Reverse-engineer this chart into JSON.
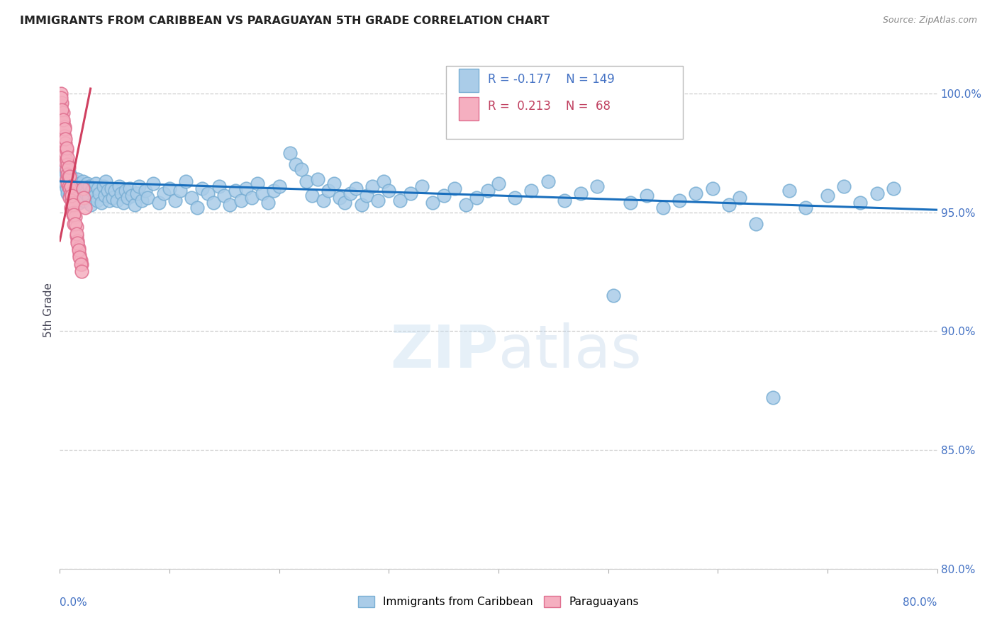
{
  "title": "IMMIGRANTS FROM CARIBBEAN VS PARAGUAYAN 5TH GRADE CORRELATION CHART",
  "source": "Source: ZipAtlas.com",
  "ylabel": "5th Grade",
  "blue_R": -0.177,
  "blue_N": 149,
  "pink_R": 0.213,
  "pink_N": 68,
  "blue_color": "#aacce8",
  "blue_edge": "#7aafd4",
  "pink_color": "#f5afc0",
  "pink_edge": "#e07090",
  "trend_blue": "#1a6fbd",
  "trend_pink": "#d04060",
  "xlim": [
    0.0,
    0.8
  ],
  "ylim": [
    80.0,
    101.8
  ],
  "yticks": [
    80.0,
    85.0,
    90.0,
    95.0,
    100.0
  ],
  "xticks": [
    0.0,
    0.1,
    0.2,
    0.3,
    0.4,
    0.5,
    0.6,
    0.7,
    0.8
  ],
  "blue_trend_x": [
    0.0,
    0.8
  ],
  "blue_trend_y": [
    96.3,
    95.1
  ],
  "pink_trend_x": [
    0.0,
    0.028
  ],
  "pink_trend_y": [
    93.8,
    100.2
  ],
  "blue_scatter": [
    [
      0.001,
      97.8
    ],
    [
      0.002,
      98.1
    ],
    [
      0.002,
      97.2
    ],
    [
      0.003,
      97.5
    ],
    [
      0.003,
      96.8
    ],
    [
      0.004,
      97.0
    ],
    [
      0.004,
      96.5
    ],
    [
      0.005,
      96.9
    ],
    [
      0.005,
      96.2
    ],
    [
      0.006,
      96.6
    ],
    [
      0.006,
      97.1
    ],
    [
      0.006,
      96.0
    ],
    [
      0.007,
      96.4
    ],
    [
      0.007,
      95.8
    ],
    [
      0.008,
      96.7
    ],
    [
      0.008,
      96.1
    ],
    [
      0.009,
      96.3
    ],
    [
      0.009,
      95.7
    ],
    [
      0.01,
      96.5
    ],
    [
      0.01,
      95.9
    ],
    [
      0.011,
      96.2
    ],
    [
      0.012,
      96.0
    ],
    [
      0.012,
      95.5
    ],
    [
      0.013,
      96.3
    ],
    [
      0.014,
      95.8
    ],
    [
      0.015,
      96.1
    ],
    [
      0.015,
      95.6
    ],
    [
      0.016,
      96.4
    ],
    [
      0.017,
      95.9
    ],
    [
      0.018,
      96.2
    ],
    [
      0.018,
      95.4
    ],
    [
      0.019,
      96.0
    ],
    [
      0.02,
      95.7
    ],
    [
      0.021,
      96.3
    ],
    [
      0.022,
      95.5
    ],
    [
      0.023,
      96.0
    ],
    [
      0.024,
      95.8
    ],
    [
      0.025,
      96.2
    ],
    [
      0.026,
      95.6
    ],
    [
      0.027,
      96.1
    ],
    [
      0.028,
      95.3
    ],
    [
      0.029,
      95.9
    ],
    [
      0.03,
      96.0
    ],
    [
      0.032,
      95.7
    ],
    [
      0.033,
      96.2
    ],
    [
      0.034,
      95.5
    ],
    [
      0.035,
      96.0
    ],
    [
      0.036,
      95.8
    ],
    [
      0.038,
      95.4
    ],
    [
      0.04,
      96.1
    ],
    [
      0.041,
      95.7
    ],
    [
      0.042,
      96.3
    ],
    [
      0.044,
      95.9
    ],
    [
      0.045,
      95.5
    ],
    [
      0.047,
      96.0
    ],
    [
      0.048,
      95.6
    ],
    [
      0.05,
      95.9
    ],
    [
      0.052,
      95.5
    ],
    [
      0.054,
      96.1
    ],
    [
      0.056,
      95.8
    ],
    [
      0.058,
      95.4
    ],
    [
      0.06,
      95.9
    ],
    [
      0.062,
      95.6
    ],
    [
      0.064,
      96.0
    ],
    [
      0.066,
      95.7
    ],
    [
      0.068,
      95.3
    ],
    [
      0.07,
      95.8
    ],
    [
      0.072,
      96.1
    ],
    [
      0.075,
      95.5
    ],
    [
      0.078,
      95.9
    ],
    [
      0.08,
      95.6
    ],
    [
      0.085,
      96.2
    ],
    [
      0.09,
      95.4
    ],
    [
      0.095,
      95.8
    ],
    [
      0.1,
      96.0
    ],
    [
      0.105,
      95.5
    ],
    [
      0.11,
      95.9
    ],
    [
      0.115,
      96.3
    ],
    [
      0.12,
      95.6
    ],
    [
      0.125,
      95.2
    ],
    [
      0.13,
      96.0
    ],
    [
      0.135,
      95.8
    ],
    [
      0.14,
      95.4
    ],
    [
      0.145,
      96.1
    ],
    [
      0.15,
      95.7
    ],
    [
      0.155,
      95.3
    ],
    [
      0.16,
      95.9
    ],
    [
      0.165,
      95.5
    ],
    [
      0.17,
      96.0
    ],
    [
      0.175,
      95.6
    ],
    [
      0.18,
      96.2
    ],
    [
      0.185,
      95.8
    ],
    [
      0.19,
      95.4
    ],
    [
      0.195,
      95.9
    ],
    [
      0.2,
      96.1
    ],
    [
      0.21,
      97.5
    ],
    [
      0.215,
      97.0
    ],
    [
      0.22,
      96.8
    ],
    [
      0.225,
      96.3
    ],
    [
      0.23,
      95.7
    ],
    [
      0.235,
      96.4
    ],
    [
      0.24,
      95.5
    ],
    [
      0.245,
      95.9
    ],
    [
      0.25,
      96.2
    ],
    [
      0.255,
      95.6
    ],
    [
      0.26,
      95.4
    ],
    [
      0.265,
      95.8
    ],
    [
      0.27,
      96.0
    ],
    [
      0.275,
      95.3
    ],
    [
      0.28,
      95.7
    ],
    [
      0.285,
      96.1
    ],
    [
      0.29,
      95.5
    ],
    [
      0.295,
      96.3
    ],
    [
      0.3,
      95.9
    ],
    [
      0.31,
      95.5
    ],
    [
      0.32,
      95.8
    ],
    [
      0.33,
      96.1
    ],
    [
      0.34,
      95.4
    ],
    [
      0.35,
      95.7
    ],
    [
      0.36,
      96.0
    ],
    [
      0.37,
      95.3
    ],
    [
      0.38,
      95.6
    ],
    [
      0.39,
      95.9
    ],
    [
      0.4,
      96.2
    ],
    [
      0.415,
      95.6
    ],
    [
      0.43,
      95.9
    ],
    [
      0.445,
      96.3
    ],
    [
      0.46,
      95.5
    ],
    [
      0.475,
      95.8
    ],
    [
      0.49,
      96.1
    ],
    [
      0.505,
      91.5
    ],
    [
      0.52,
      95.4
    ],
    [
      0.535,
      95.7
    ],
    [
      0.55,
      95.2
    ],
    [
      0.565,
      95.5
    ],
    [
      0.58,
      95.8
    ],
    [
      0.595,
      96.0
    ],
    [
      0.61,
      95.3
    ],
    [
      0.62,
      95.6
    ],
    [
      0.635,
      94.5
    ],
    [
      0.65,
      87.2
    ],
    [
      0.665,
      95.9
    ],
    [
      0.68,
      95.2
    ],
    [
      0.7,
      95.7
    ],
    [
      0.715,
      96.1
    ],
    [
      0.73,
      95.4
    ],
    [
      0.745,
      95.8
    ],
    [
      0.76,
      96.0
    ]
  ],
  "pink_scatter": [
    [
      0.001,
      100.0
    ],
    [
      0.001,
      99.5
    ],
    [
      0.001,
      99.2
    ],
    [
      0.002,
      99.6
    ],
    [
      0.002,
      99.0
    ],
    [
      0.002,
      98.6
    ],
    [
      0.002,
      98.2
    ],
    [
      0.003,
      99.2
    ],
    [
      0.003,
      98.8
    ],
    [
      0.003,
      98.4
    ],
    [
      0.003,
      98.0
    ],
    [
      0.004,
      98.6
    ],
    [
      0.004,
      98.2
    ],
    [
      0.004,
      97.8
    ],
    [
      0.004,
      97.4
    ],
    [
      0.005,
      97.9
    ],
    [
      0.005,
      97.5
    ],
    [
      0.005,
      97.1
    ],
    [
      0.006,
      97.6
    ],
    [
      0.006,
      97.2
    ],
    [
      0.006,
      96.8
    ],
    [
      0.006,
      96.4
    ],
    [
      0.007,
      97.0
    ],
    [
      0.007,
      96.6
    ],
    [
      0.007,
      96.2
    ],
    [
      0.008,
      96.5
    ],
    [
      0.008,
      96.1
    ],
    [
      0.009,
      96.0
    ],
    [
      0.009,
      95.6
    ],
    [
      0.01,
      95.8
    ],
    [
      0.01,
      95.2
    ],
    [
      0.011,
      95.5
    ],
    [
      0.011,
      95.1
    ],
    [
      0.012,
      95.4
    ],
    [
      0.012,
      94.9
    ],
    [
      0.013,
      95.0
    ],
    [
      0.013,
      94.5
    ],
    [
      0.014,
      94.8
    ],
    [
      0.015,
      94.4
    ],
    [
      0.015,
      94.0
    ],
    [
      0.016,
      93.8
    ],
    [
      0.017,
      93.5
    ],
    [
      0.018,
      93.2
    ],
    [
      0.019,
      93.0
    ],
    [
      0.02,
      92.8
    ],
    [
      0.001,
      99.8
    ],
    [
      0.002,
      99.3
    ],
    [
      0.003,
      98.9
    ],
    [
      0.004,
      98.5
    ],
    [
      0.005,
      98.1
    ],
    [
      0.006,
      97.7
    ],
    [
      0.007,
      97.3
    ],
    [
      0.008,
      96.9
    ],
    [
      0.009,
      96.5
    ],
    [
      0.01,
      96.1
    ],
    [
      0.011,
      95.7
    ],
    [
      0.012,
      95.3
    ],
    [
      0.013,
      94.9
    ],
    [
      0.014,
      94.5
    ],
    [
      0.015,
      94.1
    ],
    [
      0.016,
      93.7
    ],
    [
      0.017,
      93.4
    ],
    [
      0.018,
      93.1
    ],
    [
      0.019,
      92.8
    ],
    [
      0.02,
      92.5
    ],
    [
      0.021,
      96.0
    ],
    [
      0.022,
      95.6
    ],
    [
      0.023,
      95.2
    ]
  ]
}
